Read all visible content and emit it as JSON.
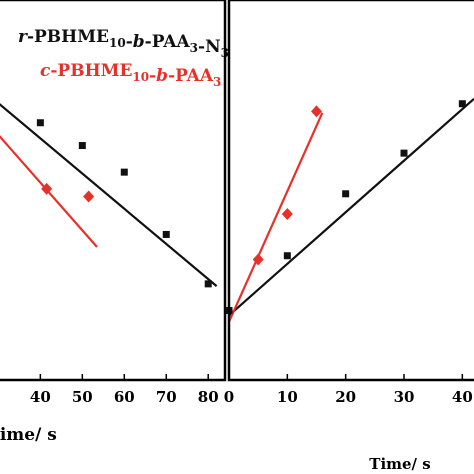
{
  "chart_data": [
    {
      "type": "scatter",
      "panel": "left",
      "xlabel": "Time/ s",
      "ylabel": "",
      "xlim": [
        28,
        84
      ],
      "ylim": [
        0,
        10
      ],
      "x_ticks": [
        {
          "value": 40,
          "label": "40"
        },
        {
          "value": 50,
          "label": "50"
        },
        {
          "value": 60,
          "label": "60"
        },
        {
          "value": 70,
          "label": "70"
        },
        {
          "value": 80,
          "label": "80"
        }
      ],
      "legend": {
        "placement": "top-left"
      },
      "series": [
        {
          "name": "-PBHME10-b-PAA3-N3",
          "legend_parts": [
            {
              "text": "r",
              "style": "italic"
            },
            {
              "text": "-PBHME",
              "style": "normal"
            },
            {
              "text": "10",
              "style": "sub"
            },
            {
              "text": "-",
              "style": "normal"
            },
            {
              "text": "b",
              "style": "italic"
            },
            {
              "text": "-PAA",
              "style": "normal"
            },
            {
              "text": "3",
              "style": "sub"
            },
            {
              "text": "-N",
              "style": "normal"
            },
            {
              "text": "3",
              "style": "sub"
            }
          ],
          "color": "#111111",
          "marker": "square",
          "points": [
            {
              "x": 40,
              "y": 6.77
            },
            {
              "x": 50,
              "y": 6.17
            },
            {
              "x": 60,
              "y": 5.47
            },
            {
              "x": 70,
              "y": 3.83
            },
            {
              "x": 80,
              "y": 2.53
            }
          ],
          "fit": [
            {
              "x": 28,
              "y": 7.47
            },
            {
              "x": 82,
              "y": 2.47
            }
          ]
        },
        {
          "name": "-PBHME10-b-PAA3",
          "legend_parts": [
            {
              "text": "c",
              "style": "italic"
            },
            {
              "text": "-PBHME",
              "style": "normal"
            },
            {
              "text": "10",
              "style": "sub"
            },
            {
              "text": "-",
              "style": "normal"
            },
            {
              "text": "b",
              "style": "italic"
            },
            {
              "text": "-PAA",
              "style": "normal"
            },
            {
              "text": "3",
              "style": "sub"
            }
          ],
          "color": "#e8302a",
          "marker": "diamond",
          "points": [
            {
              "x": 41.5,
              "y": 5.03
            },
            {
              "x": 51.5,
              "y": 4.83
            }
          ],
          "fit": [
            {
              "x": 28,
              "y": 6.7
            },
            {
              "x": 53.5,
              "y": 3.5
            }
          ]
        }
      ]
    },
    {
      "type": "scatter",
      "panel": "right",
      "xlabel": "Time/ s",
      "ylabel": "",
      "xlim": [
        0,
        42
      ],
      "ylim": [
        0,
        10
      ],
      "x_ticks": [
        {
          "value": 0,
          "label": "0"
        },
        {
          "value": 10,
          "label": "10"
        },
        {
          "value": 20,
          "label": "20"
        },
        {
          "value": 30,
          "label": "30"
        },
        {
          "value": 40,
          "label": "40"
        }
      ],
      "series": [
        {
          "color": "#111111",
          "marker": "square",
          "points": [
            {
              "x": 0,
              "y": 1.83
            },
            {
              "x": 10,
              "y": 3.27
            },
            {
              "x": 20,
              "y": 4.9
            },
            {
              "x": 30,
              "y": 5.97
            },
            {
              "x": 40,
              "y": 7.27
            }
          ],
          "fit": [
            {
              "x": 0,
              "y": 1.7
            },
            {
              "x": 42,
              "y": 7.4
            }
          ]
        },
        {
          "color": "#e8302a",
          "marker": "diamond",
          "points": [
            {
              "x": 5,
              "y": 3.17
            },
            {
              "x": 10,
              "y": 4.37
            },
            {
              "x": 15,
              "y": 7.07
            }
          ],
          "fit": [
            {
              "x": 0,
              "y": 1.53
            },
            {
              "x": 16,
              "y": 7.03
            }
          ]
        }
      ]
    }
  ]
}
